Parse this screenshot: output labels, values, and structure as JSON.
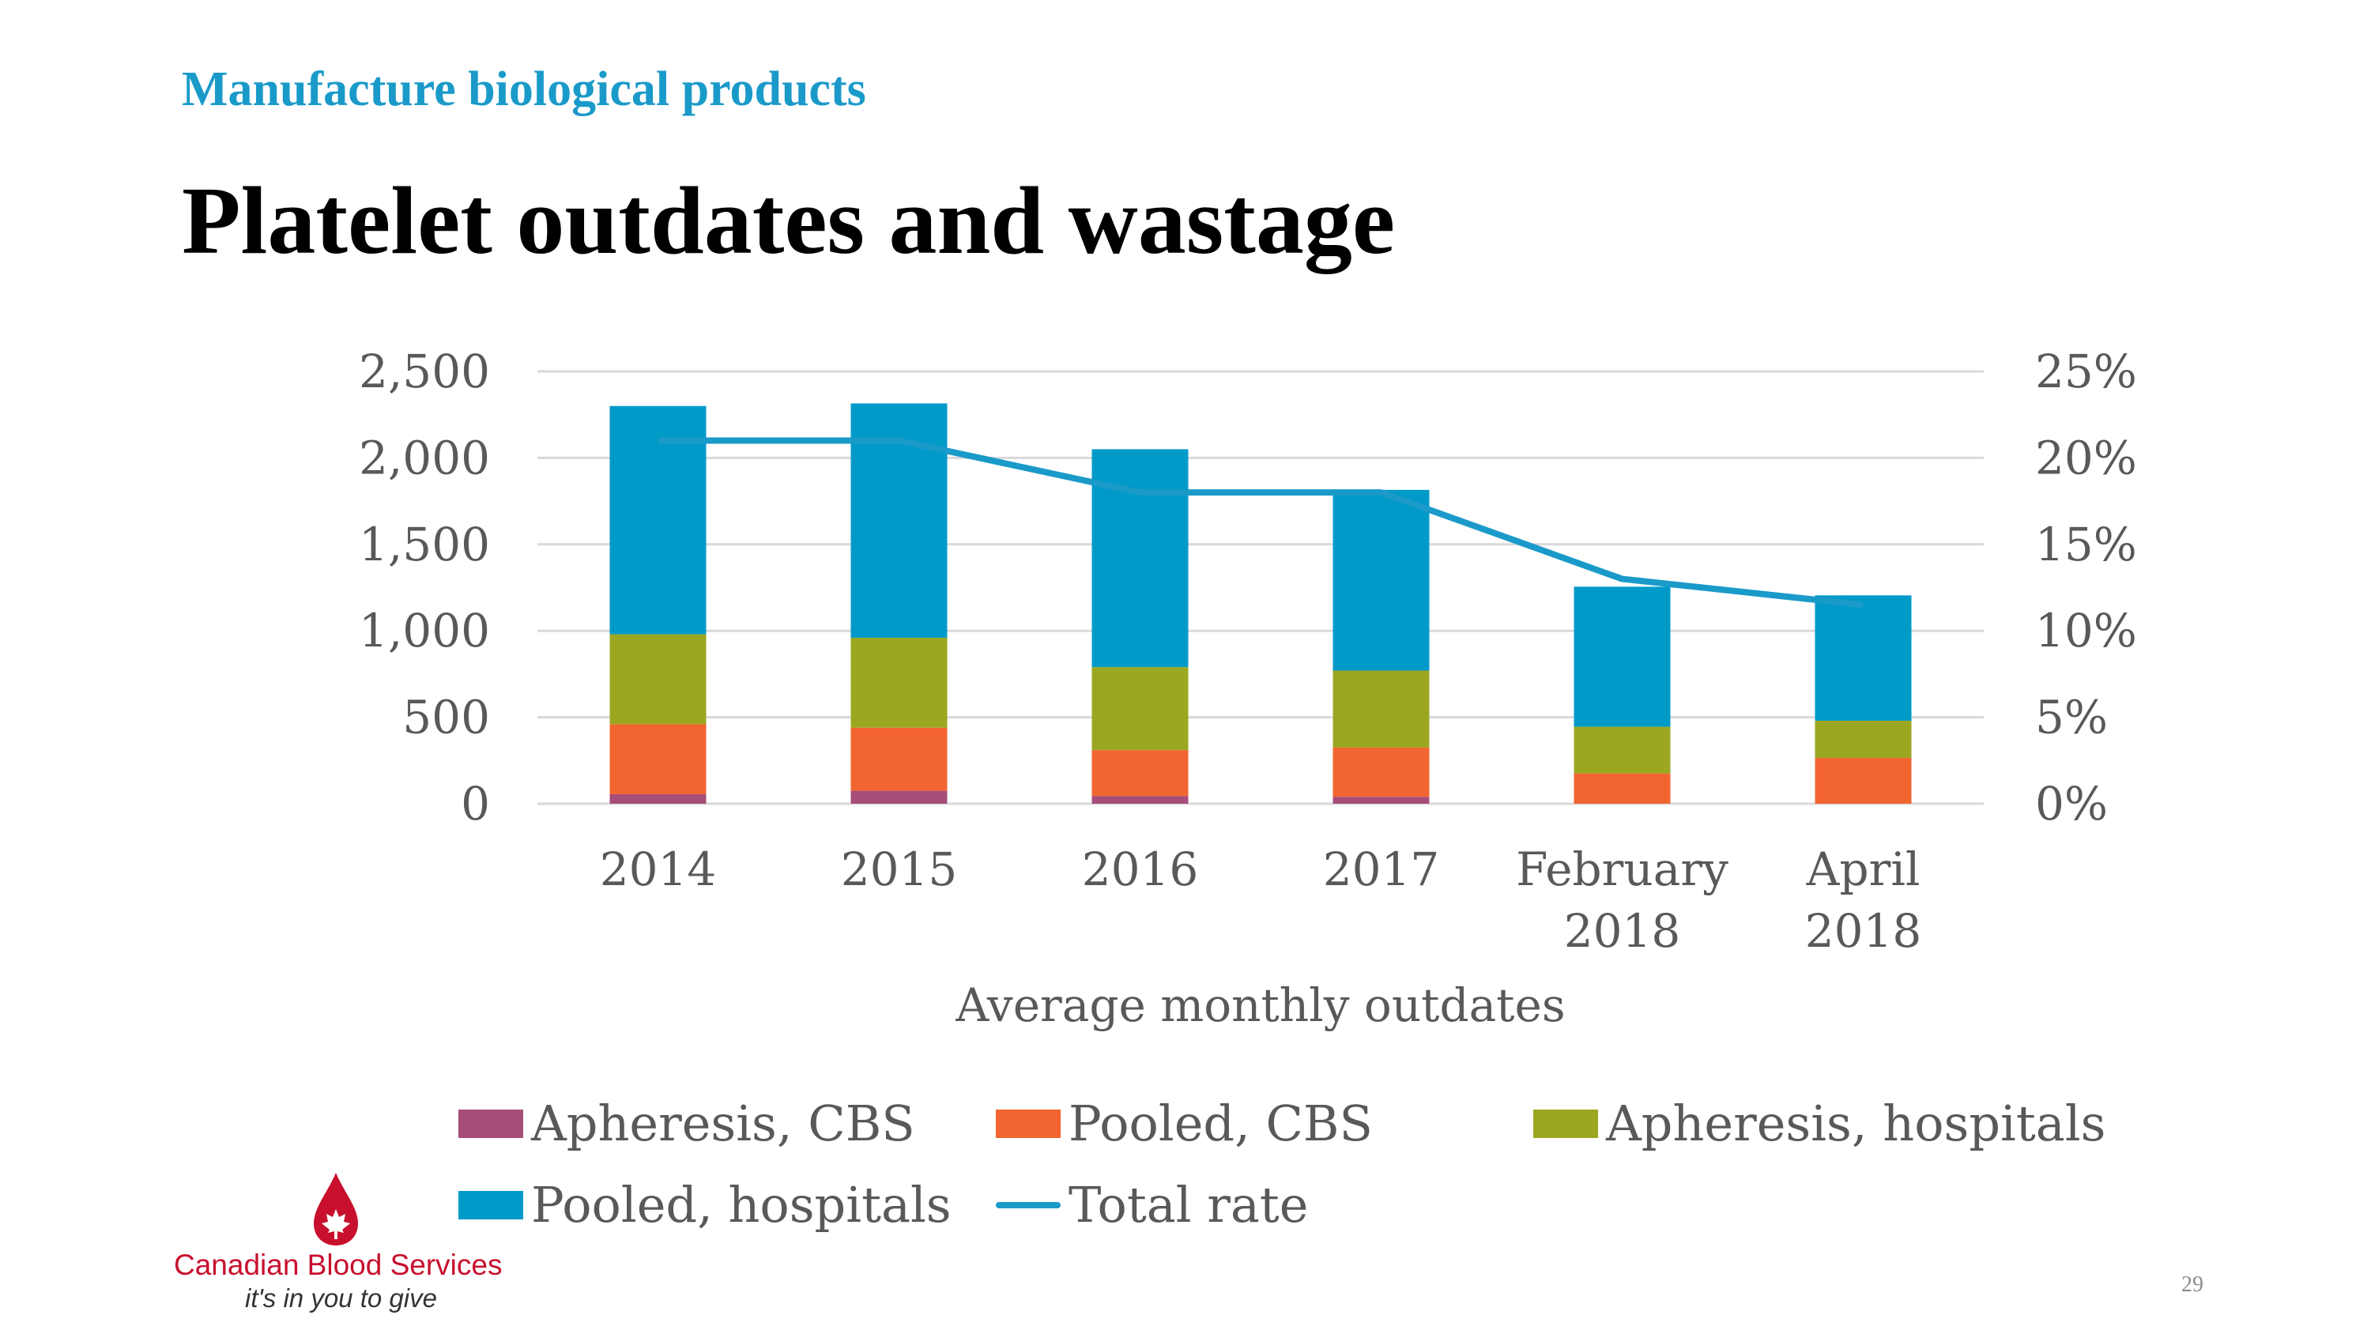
{
  "slide": {
    "subtitle": "Manufacture biological products",
    "title": "Platelet outdates and wastage",
    "page_number": "29"
  },
  "logo": {
    "name": "Canadian Blood Services",
    "tagline": "it's in you to give"
  },
  "chart_data": {
    "type": "bar",
    "stacked": true,
    "categories": [
      "2014",
      "2015",
      "2016",
      "2017",
      "February 2018",
      "April 2018"
    ],
    "category_lines": [
      [
        "2014"
      ],
      [
        "2015"
      ],
      [
        "2016"
      ],
      [
        "2017"
      ],
      [
        "February",
        "2018"
      ],
      [
        "April",
        "2018"
      ]
    ],
    "series": [
      {
        "name": "Apheresis, CBS",
        "color": "#a64d79",
        "values": [
          55,
          75,
          45,
          40,
          0,
          0
        ]
      },
      {
        "name": "Pooled, CBS",
        "color": "#f26530",
        "values": [
          405,
          365,
          265,
          285,
          175,
          265
        ]
      },
      {
        "name": "Apheresis, hospitals",
        "color": "#9ba720",
        "values": [
          520,
          520,
          480,
          445,
          270,
          215
        ]
      },
      {
        "name": "Pooled, hospitals",
        "color": "#009ac9",
        "values": [
          1320,
          1355,
          1260,
          1045,
          810,
          725
        ]
      }
    ],
    "line_series": {
      "name": "Total rate",
      "color": "#1a9ac9",
      "axis": "right",
      "values": [
        0.21,
        0.21,
        0.18,
        0.18,
        0.13,
        0.115
      ]
    },
    "xlabel": "Average monthly outdates",
    "ylabel": "",
    "ylim": [
      0,
      2500
    ],
    "y_ticks": [
      "0",
      "500",
      "1,000",
      "1,500",
      "2,000",
      "2,500"
    ],
    "y2lim": [
      0,
      0.25
    ],
    "y2_ticks": [
      "0%",
      "5%",
      "10%",
      "15%",
      "20%",
      "25%"
    ],
    "grid": true,
    "legend_position": "bottom"
  }
}
